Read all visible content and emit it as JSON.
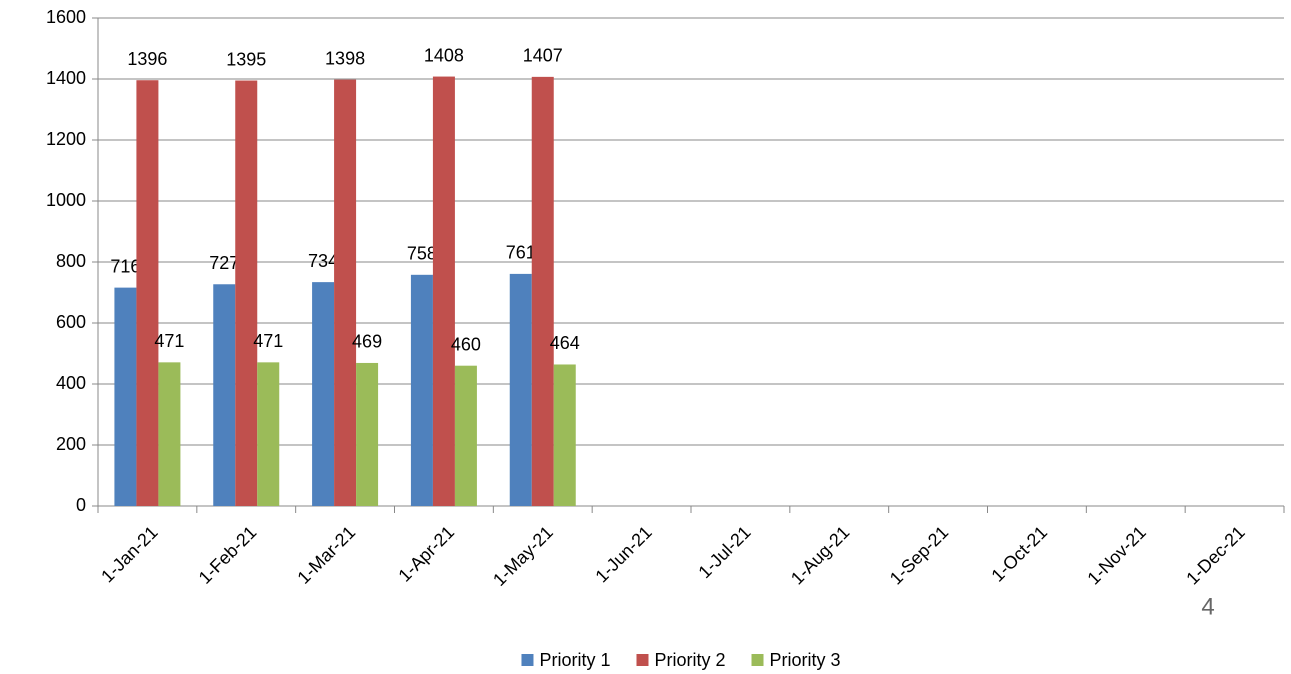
{
  "chart_data": {
    "type": "bar",
    "categories": [
      "1-Jan-21",
      "1-Feb-21",
      "1-Mar-21",
      "1-Apr-21",
      "1-May-21",
      "1-Jun-21",
      "1-Jul-21",
      "1-Aug-21",
      "1-Sep-21",
      "1-Oct-21",
      "1-Nov-21",
      "1-Dec-21"
    ],
    "series": [
      {
        "name": "Priority 1",
        "color": "#4f81bd",
        "values": [
          716,
          727,
          734,
          758,
          761,
          null,
          null,
          null,
          null,
          null,
          null,
          null
        ]
      },
      {
        "name": "Priority 2",
        "color": "#c0504d",
        "values": [
          1396,
          1395,
          1398,
          1408,
          1407,
          null,
          null,
          null,
          null,
          null,
          null,
          null
        ]
      },
      {
        "name": "Priority 3",
        "color": "#9bbb59",
        "values": [
          471,
          471,
          469,
          460,
          464,
          null,
          null,
          null,
          null,
          null,
          null,
          null
        ]
      }
    ],
    "ylim": [
      0,
      1600
    ],
    "yticks": [
      0,
      200,
      400,
      600,
      800,
      1000,
      1200,
      1400,
      1600
    ],
    "grid": true,
    "legend": "bottom"
  },
  "page_number": "4"
}
